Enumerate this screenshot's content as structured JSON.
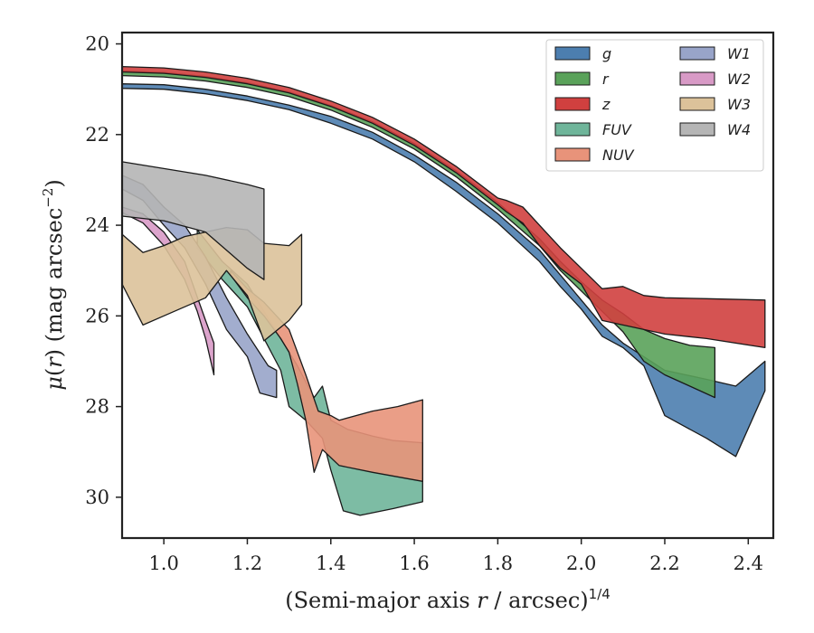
{
  "chart_data": {
    "type": "area",
    "xlabel": "(Semi-major axis r / arcsec)^1/4",
    "xlabel_parts": {
      "prefix": "(Semi-major axis ",
      "var": "r",
      "mid": " / arcsec)",
      "sup": "1/4"
    },
    "ylabel": "μ(r) (mag arcsec^−2)",
    "ylabel_parts": {
      "mu": "μ",
      "open": "(",
      "var": "r",
      "close": ") (mag arcsec",
      "sup": "−2",
      "end": ")"
    },
    "xlim": [
      0.9,
      2.46
    ],
    "ylim": [
      30.9,
      19.75
    ],
    "y_inverted": true,
    "xticks": [
      "1.0",
      "1.2",
      "1.4",
      "1.6",
      "1.8",
      "2.0",
      "2.2",
      "2.4"
    ],
    "yticks": [
      "20",
      "22",
      "24",
      "26",
      "28",
      "30"
    ],
    "legend_position": "top-right",
    "legend_columns": 2,
    "series": [
      {
        "name": "g",
        "color": "#4c7eaf",
        "upper": [
          [
            0.9,
            20.88
          ],
          [
            1.0,
            20.9
          ],
          [
            1.1,
            21.0
          ],
          [
            1.2,
            21.15
          ],
          [
            1.3,
            21.35
          ],
          [
            1.4,
            21.6
          ],
          [
            1.5,
            21.95
          ],
          [
            1.6,
            22.45
          ],
          [
            1.7,
            23.05
          ],
          [
            1.8,
            23.75
          ],
          [
            1.9,
            24.55
          ],
          [
            1.95,
            25.1
          ],
          [
            2.0,
            25.65
          ],
          [
            2.05,
            26.2
          ],
          [
            2.1,
            26.6
          ],
          [
            2.15,
            26.9
          ],
          [
            2.2,
            27.2
          ],
          [
            2.25,
            27.3
          ],
          [
            2.3,
            27.4
          ],
          [
            2.37,
            27.55
          ],
          [
            2.44,
            27.0
          ]
        ],
        "lower": [
          [
            0.9,
            20.98
          ],
          [
            1.0,
            21.0
          ],
          [
            1.1,
            21.1
          ],
          [
            1.2,
            21.25
          ],
          [
            1.3,
            21.45
          ],
          [
            1.4,
            21.75
          ],
          [
            1.5,
            22.1
          ],
          [
            1.6,
            22.6
          ],
          [
            1.7,
            23.25
          ],
          [
            1.8,
            23.95
          ],
          [
            1.9,
            24.8
          ],
          [
            1.95,
            25.35
          ],
          [
            2.0,
            25.85
          ],
          [
            2.05,
            26.45
          ],
          [
            2.1,
            26.7
          ],
          [
            2.15,
            27.1
          ],
          [
            2.2,
            28.2
          ],
          [
            2.25,
            28.45
          ],
          [
            2.3,
            28.7
          ],
          [
            2.37,
            29.1
          ],
          [
            2.44,
            27.65
          ]
        ]
      },
      {
        "name": "r",
        "color": "#5aa25a",
        "upper": [
          [
            0.9,
            20.6
          ],
          [
            1.0,
            20.63
          ],
          [
            1.1,
            20.72
          ],
          [
            1.2,
            20.86
          ],
          [
            1.3,
            21.06
          ],
          [
            1.4,
            21.36
          ],
          [
            1.5,
            21.72
          ],
          [
            1.6,
            22.2
          ],
          [
            1.7,
            22.8
          ],
          [
            1.8,
            23.5
          ],
          [
            1.9,
            24.3
          ],
          [
            1.95,
            24.8
          ],
          [
            2.0,
            25.25
          ],
          [
            2.05,
            25.65
          ],
          [
            2.1,
            25.95
          ],
          [
            2.15,
            26.3
          ],
          [
            2.2,
            26.5
          ],
          [
            2.26,
            26.65
          ],
          [
            2.32,
            26.7
          ]
        ],
        "lower": [
          [
            0.9,
            20.7
          ],
          [
            1.0,
            20.73
          ],
          [
            1.1,
            20.82
          ],
          [
            1.2,
            20.96
          ],
          [
            1.3,
            21.16
          ],
          [
            1.4,
            21.46
          ],
          [
            1.5,
            21.84
          ],
          [
            1.6,
            22.32
          ],
          [
            1.7,
            22.93
          ],
          [
            1.8,
            23.65
          ],
          [
            1.9,
            24.45
          ],
          [
            1.95,
            25.0
          ],
          [
            2.0,
            25.45
          ],
          [
            2.05,
            25.9
          ],
          [
            2.1,
            26.35
          ],
          [
            2.15,
            27.0
          ],
          [
            2.2,
            27.3
          ],
          [
            2.26,
            27.55
          ],
          [
            2.32,
            27.8
          ]
        ]
      },
      {
        "name": "z",
        "color": "#d0403f",
        "upper": [
          [
            0.9,
            20.5
          ],
          [
            1.0,
            20.53
          ],
          [
            1.1,
            20.62
          ],
          [
            1.2,
            20.76
          ],
          [
            1.3,
            20.96
          ],
          [
            1.4,
            21.26
          ],
          [
            1.5,
            21.62
          ],
          [
            1.6,
            22.1
          ],
          [
            1.7,
            22.7
          ],
          [
            1.8,
            23.4
          ],
          [
            1.82,
            23.45
          ],
          [
            1.86,
            23.6
          ],
          [
            1.9,
            24.0
          ],
          [
            1.95,
            24.5
          ],
          [
            2.0,
            24.95
          ],
          [
            2.05,
            25.4
          ],
          [
            2.1,
            25.35
          ],
          [
            2.15,
            25.55
          ],
          [
            2.2,
            25.6
          ],
          [
            2.3,
            25.62
          ],
          [
            2.44,
            25.65
          ]
        ],
        "lower": [
          [
            0.9,
            20.62
          ],
          [
            1.0,
            20.65
          ],
          [
            1.1,
            20.74
          ],
          [
            1.2,
            20.88
          ],
          [
            1.3,
            21.08
          ],
          [
            1.4,
            21.38
          ],
          [
            1.5,
            21.75
          ],
          [
            1.6,
            22.24
          ],
          [
            1.7,
            22.84
          ],
          [
            1.8,
            23.55
          ],
          [
            1.82,
            23.7
          ],
          [
            1.86,
            23.95
          ],
          [
            1.9,
            24.45
          ],
          [
            1.95,
            24.95
          ],
          [
            2.0,
            25.3
          ],
          [
            2.05,
            26.1
          ],
          [
            2.1,
            26.2
          ],
          [
            2.15,
            26.3
          ],
          [
            2.2,
            26.4
          ],
          [
            2.3,
            26.5
          ],
          [
            2.44,
            26.7
          ]
        ]
      },
      {
        "name": "FUV",
        "color": "#6fb59a",
        "upper": [
          [
            1.08,
            24.1
          ],
          [
            1.14,
            24.8
          ],
          [
            1.2,
            25.3
          ],
          [
            1.24,
            25.9
          ],
          [
            1.28,
            26.5
          ],
          [
            1.32,
            27.1
          ],
          [
            1.36,
            27.8
          ],
          [
            1.38,
            27.55
          ],
          [
            1.4,
            28.3
          ],
          [
            1.44,
            28.5
          ],
          [
            1.5,
            28.65
          ],
          [
            1.55,
            28.75
          ],
          [
            1.62,
            28.8
          ]
        ],
        "lower": [
          [
            1.08,
            24.5
          ],
          [
            1.14,
            25.2
          ],
          [
            1.2,
            25.8
          ],
          [
            1.24,
            26.5
          ],
          [
            1.28,
            27.2
          ],
          [
            1.3,
            28.0
          ],
          [
            1.34,
            28.3
          ],
          [
            1.38,
            28.7
          ],
          [
            1.4,
            29.4
          ],
          [
            1.43,
            30.3
          ],
          [
            1.47,
            30.4
          ],
          [
            1.55,
            30.25
          ],
          [
            1.62,
            30.1
          ]
        ]
      },
      {
        "name": "NUV",
        "color": "#e8937a",
        "upper": [
          [
            1.16,
            25.0
          ],
          [
            1.2,
            25.4
          ],
          [
            1.24,
            25.7
          ],
          [
            1.28,
            26.1
          ],
          [
            1.3,
            26.3
          ],
          [
            1.34,
            27.3
          ],
          [
            1.37,
            28.1
          ],
          [
            1.4,
            28.2
          ],
          [
            1.42,
            28.3
          ],
          [
            1.5,
            28.1
          ],
          [
            1.56,
            28.0
          ],
          [
            1.62,
            27.85
          ]
        ],
        "lower": [
          [
            1.16,
            25.1
          ],
          [
            1.2,
            25.6
          ],
          [
            1.24,
            26.0
          ],
          [
            1.28,
            26.5
          ],
          [
            1.3,
            26.8
          ],
          [
            1.32,
            27.5
          ],
          [
            1.34,
            28.3
          ],
          [
            1.36,
            29.45
          ],
          [
            1.38,
            28.95
          ],
          [
            1.42,
            29.3
          ],
          [
            1.5,
            29.45
          ],
          [
            1.56,
            29.55
          ],
          [
            1.62,
            29.65
          ]
        ]
      },
      {
        "name": "W1",
        "color": "#98a4c9",
        "upper": [
          [
            0.9,
            22.9
          ],
          [
            0.95,
            23.1
          ],
          [
            1.0,
            23.6
          ],
          [
            1.05,
            24.0
          ],
          [
            1.1,
            24.7
          ],
          [
            1.15,
            25.6
          ],
          [
            1.2,
            26.4
          ],
          [
            1.25,
            27.1
          ],
          [
            1.27,
            27.2
          ]
        ],
        "lower": [
          [
            0.9,
            23.2
          ],
          [
            0.95,
            23.45
          ],
          [
            1.0,
            24.0
          ],
          [
            1.05,
            24.5
          ],
          [
            1.1,
            25.3
          ],
          [
            1.15,
            26.3
          ],
          [
            1.2,
            26.9
          ],
          [
            1.23,
            27.7
          ],
          [
            1.27,
            27.8
          ]
        ]
      },
      {
        "name": "W2",
        "color": "#d89ac6",
        "upper": [
          [
            0.9,
            23.6
          ],
          [
            0.95,
            23.75
          ],
          [
            1.0,
            24.15
          ],
          [
            1.05,
            24.8
          ],
          [
            1.1,
            26.1
          ],
          [
            1.12,
            26.6
          ]
        ],
        "lower": [
          [
            0.9,
            23.72
          ],
          [
            0.95,
            23.95
          ],
          [
            1.0,
            24.45
          ],
          [
            1.05,
            25.2
          ],
          [
            1.08,
            25.9
          ],
          [
            1.1,
            26.5
          ],
          [
            1.12,
            27.3
          ]
        ]
      },
      {
        "name": "W3",
        "color": "#dcc29a",
        "upper": [
          [
            0.9,
            24.2
          ],
          [
            0.95,
            24.6
          ],
          [
            1.0,
            24.45
          ],
          [
            1.05,
            24.25
          ],
          [
            1.1,
            24.15
          ],
          [
            1.15,
            24.05
          ],
          [
            1.2,
            24.1
          ],
          [
            1.24,
            24.4
          ],
          [
            1.3,
            24.45
          ],
          [
            1.33,
            24.2
          ]
        ],
        "lower": [
          [
            0.9,
            25.3
          ],
          [
            0.95,
            26.2
          ],
          [
            1.0,
            26.0
          ],
          [
            1.05,
            25.8
          ],
          [
            1.1,
            25.6
          ],
          [
            1.15,
            25.0
          ],
          [
            1.2,
            25.55
          ],
          [
            1.24,
            26.55
          ],
          [
            1.3,
            26.1
          ],
          [
            1.33,
            25.75
          ]
        ]
      },
      {
        "name": "W4",
        "color": "#b5b5b5",
        "upper": [
          [
            0.9,
            22.6
          ],
          [
            1.0,
            22.75
          ],
          [
            1.1,
            22.9
          ],
          [
            1.2,
            23.1
          ],
          [
            1.24,
            23.2
          ]
        ],
        "lower": [
          [
            0.9,
            23.8
          ],
          [
            1.0,
            23.9
          ],
          [
            1.1,
            24.15
          ],
          [
            1.2,
            24.95
          ],
          [
            1.24,
            25.2
          ]
        ]
      }
    ]
  }
}
